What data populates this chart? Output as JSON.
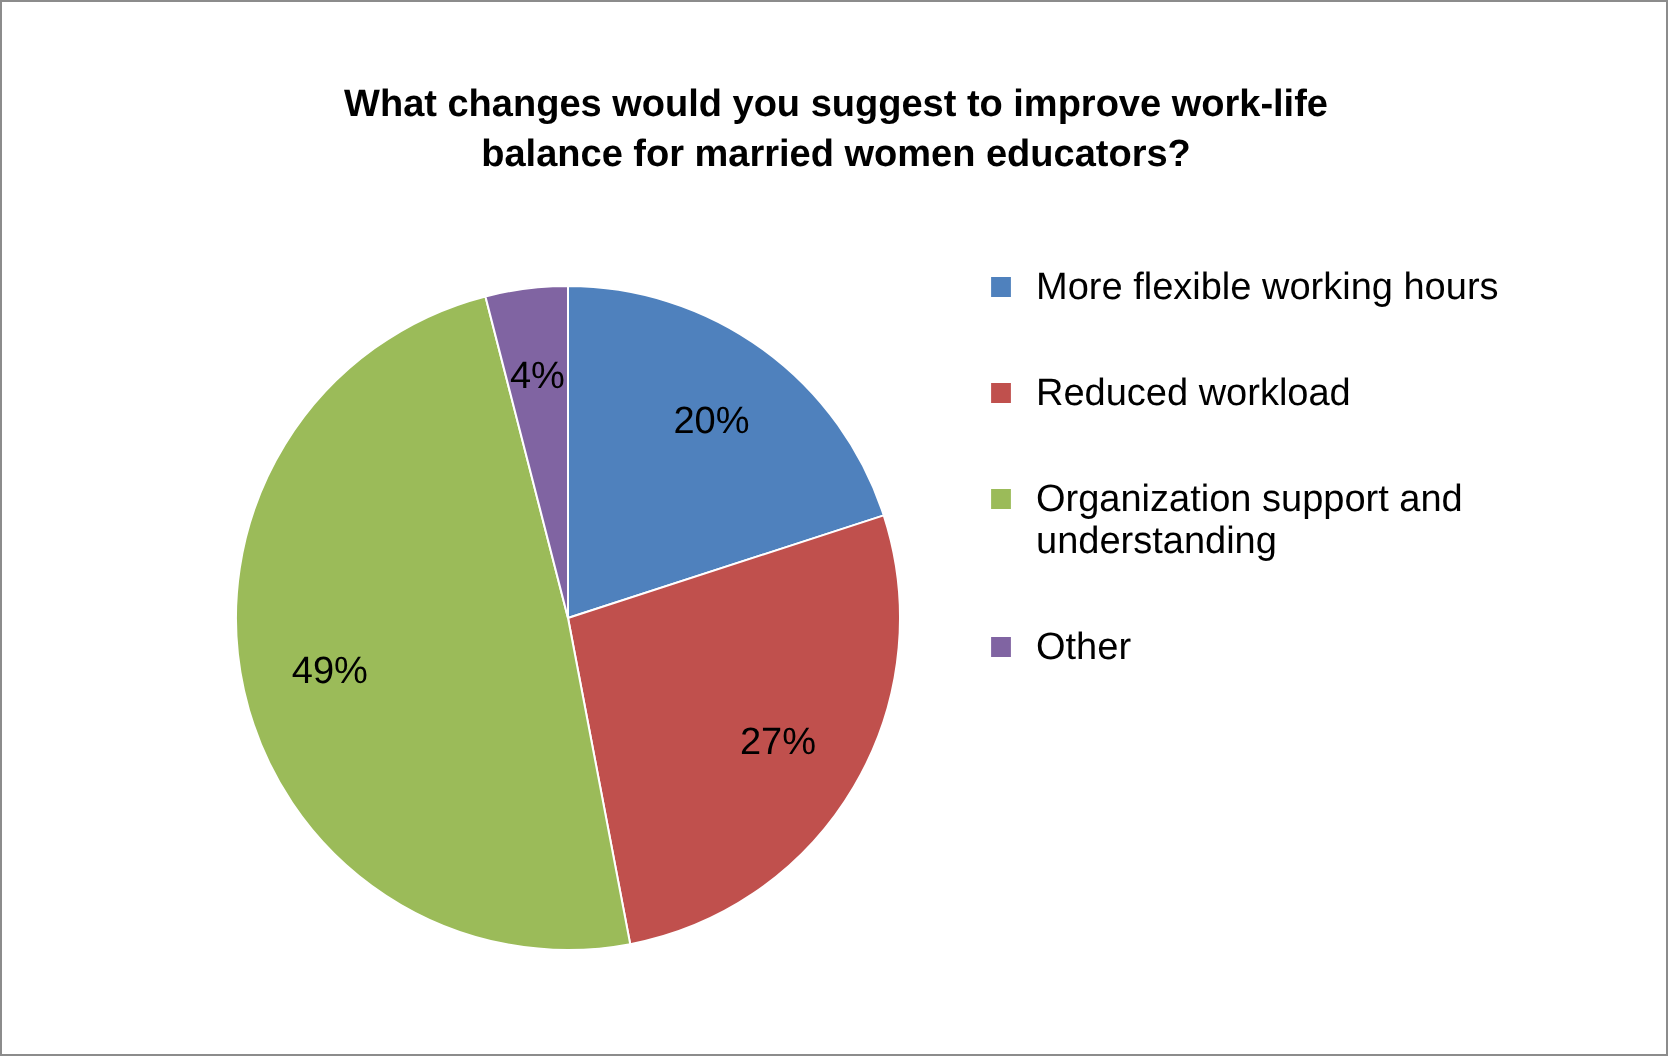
{
  "chart_data": {
    "type": "pie",
    "title": "What changes would you suggest to improve work-life balance for married women educators?",
    "categories": [
      "More flexible working hours",
      "Reduced workload",
      "Organization support and understanding",
      "Other"
    ],
    "values": [
      20,
      27,
      49,
      4
    ],
    "colors": [
      "#4f81bd",
      "#c0504d",
      "#9bbb59",
      "#8064a2"
    ],
    "value_labels": [
      "20%",
      "27%",
      "49%",
      "4%"
    ],
    "legend": "right"
  }
}
